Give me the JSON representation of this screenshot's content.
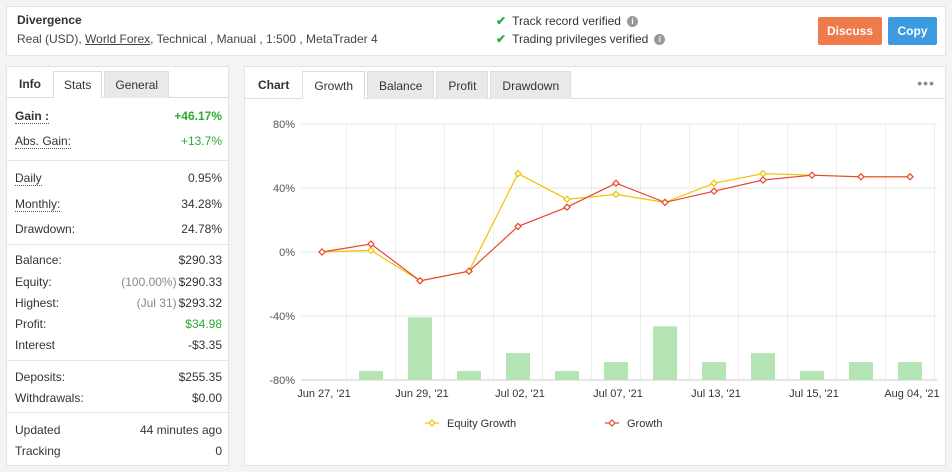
{
  "header": {
    "title": "Divergence",
    "sub_prefix": "Real (USD),",
    "broker_link": "World Forex",
    "sub_suffix": ", Technical , Manual , 1:500 , MetaTrader 4",
    "verified": [
      "Track record verified",
      "Trading privileges verified"
    ],
    "discuss_label": "Discuss",
    "copy_label": "Copy",
    "icon_check": "check-icon",
    "icon_info": "info-icon",
    "accent_discuss": "#ef7b4b",
    "accent_copy": "#3c9be0"
  },
  "left": {
    "tabs": [
      "Info",
      "Stats",
      "General"
    ],
    "active_tab": "Stats",
    "stats": {
      "gain": {
        "label": "Gain :",
        "value": "+46.17%"
      },
      "abs_gain": {
        "label": "Abs. Gain:",
        "value": "+13.7%"
      },
      "daily": {
        "label": "Daily",
        "value": "0.95%"
      },
      "monthly": {
        "label": "Monthly:",
        "value": "34.28%"
      },
      "drawdown": {
        "label": "Drawdown:",
        "value": "24.78%"
      },
      "balance": {
        "label": "Balance:",
        "value": "$290.33"
      },
      "equity": {
        "label": "Equity:",
        "note": "(100.00%)",
        "value": "$290.33"
      },
      "highest": {
        "label": "Highest:",
        "note": "(Jul 31)",
        "value": "$293.32"
      },
      "profit": {
        "label": "Profit:",
        "value": "$34.98"
      },
      "interest": {
        "label": "Interest",
        "value": "-$3.35"
      },
      "deposits": {
        "label": "Deposits:",
        "value": "$255.35"
      },
      "withdrawals": {
        "label": "Withdrawals:",
        "value": "$0.00"
      },
      "updated": {
        "label": "Updated",
        "value": "44 minutes ago"
      },
      "tracking": {
        "label": "Tracking",
        "value": "0"
      }
    }
  },
  "right": {
    "tabs": [
      "Chart",
      "Growth",
      "Balance",
      "Profit",
      "Drawdown"
    ],
    "active_tab": "Growth",
    "menu_icon": "more-dots-icon"
  },
  "chart_data": {
    "type": "line",
    "title": "",
    "xlabel": "",
    "ylabel": "",
    "ylim": [
      -80,
      80
    ],
    "yticks": [
      "80%",
      "40%",
      "0%",
      "-40%",
      "-80%"
    ],
    "x_tick_labels": [
      "Jun 27, '21",
      "Jun 29, '21",
      "Jul 02, '21",
      "Jul 07, '21",
      "Jul 13, '21",
      "Jul 15, '21",
      "Aug 04, '21"
    ],
    "x_count": 13,
    "grid": true,
    "legend_position": "bottom",
    "series": [
      {
        "name": "Equity Growth",
        "color": "#f2c200",
        "values": [
          0,
          1,
          -18,
          -12,
          49,
          33,
          36,
          31,
          43,
          49,
          48,
          47,
          47
        ]
      },
      {
        "name": "Growth",
        "color": "#e8472f",
        "values": [
          0,
          5,
          -18,
          -12,
          16,
          28,
          43,
          31,
          38,
          45,
          48,
          47,
          47
        ]
      }
    ],
    "bars": {
      "color": "#b4e3b4",
      "values": [
        0,
        4,
        28,
        4,
        12,
        4,
        8,
        24,
        8,
        12,
        4,
        8,
        8
      ]
    }
  }
}
